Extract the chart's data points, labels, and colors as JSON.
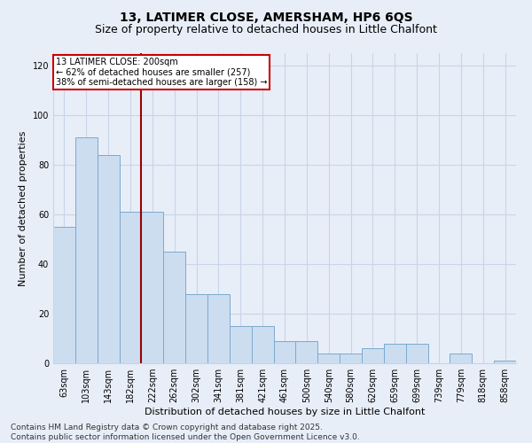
{
  "title": "13, LATIMER CLOSE, AMERSHAM, HP6 6QS",
  "subtitle": "Size of property relative to detached houses in Little Chalfont",
  "xlabel": "Distribution of detached houses by size in Little Chalfont",
  "ylabel": "Number of detached properties",
  "categories": [
    "63sqm",
    "103sqm",
    "143sqm",
    "182sqm",
    "222sqm",
    "262sqm",
    "302sqm",
    "341sqm",
    "381sqm",
    "421sqm",
    "461sqm",
    "500sqm",
    "540sqm",
    "580sqm",
    "620sqm",
    "659sqm",
    "699sqm",
    "739sqm",
    "779sqm",
    "818sqm",
    "858sqm"
  ],
  "values": [
    55,
    91,
    84,
    61,
    61,
    45,
    28,
    28,
    15,
    15,
    9,
    9,
    4,
    4,
    6,
    8,
    8,
    0,
    4,
    0,
    1
  ],
  "bar_color": "#ccddf0",
  "bar_edge_color": "#7aaad0",
  "vline_color": "#990000",
  "vline_pos": 3.5,
  "annotation_text": "13 LATIMER CLOSE: 200sqm\n← 62% of detached houses are smaller (257)\n38% of semi-detached houses are larger (158) →",
  "annotation_box_color": "#ffffff",
  "annotation_box_edge": "#cc0000",
  "ylim": [
    0,
    125
  ],
  "yticks": [
    0,
    20,
    40,
    60,
    80,
    100,
    120
  ],
  "grid_color": "#c8d4e8",
  "bg_color": "#e8eef8",
  "footer": "Contains HM Land Registry data © Crown copyright and database right 2025.\nContains public sector information licensed under the Open Government Licence v3.0.",
  "title_fontsize": 10,
  "subtitle_fontsize": 9,
  "xlabel_fontsize": 8,
  "ylabel_fontsize": 8,
  "tick_fontsize": 7,
  "footer_fontsize": 6.5,
  "annot_fontsize": 7
}
